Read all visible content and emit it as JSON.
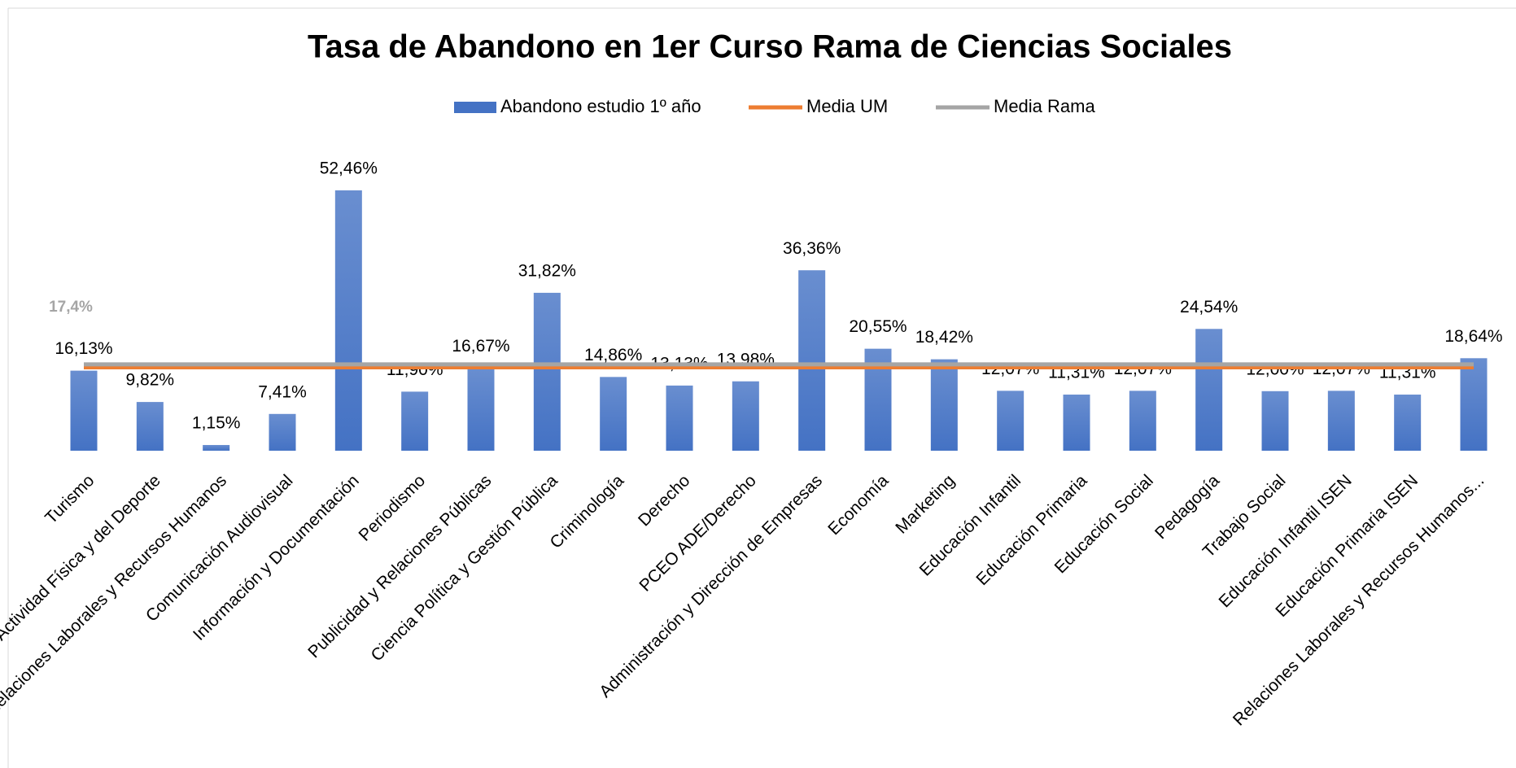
{
  "chart_data": {
    "type": "bar",
    "title": "Tasa de Abandono en 1er Curso Rama de Ciencias Sociales",
    "categories": [
      "Turismo",
      "Ciencias de la Actividad Física y del Deporte",
      "Relaciones Laborales y Recursos Humanos",
      "Comunicación Audiovisual",
      "Información y Documentación",
      "Periodismo",
      "Publicidad y Relaciones Públicas",
      "Ciencia Política y Gestión Pública",
      "Criminología",
      "Derecho",
      "PCEO ADE/Derecho",
      "Administración y Dirección de Empresas",
      "Economía",
      "Marketing",
      "Educación Infantil",
      "Educación Primaria",
      "Educación Social",
      "Pedagogía",
      "Trabajo Social",
      "Educación Infantil ISEN",
      "Educación Primaria ISEN",
      "Relaciones Laborales y Recursos Humanos..."
    ],
    "series": [
      {
        "name": "Abandono estudio 1º año",
        "color": "#4472c4",
        "values": [
          16.13,
          9.82,
          1.15,
          7.41,
          52.46,
          11.9,
          16.67,
          31.82,
          14.86,
          13.13,
          13.98,
          36.36,
          20.55,
          18.42,
          12.07,
          11.31,
          12.07,
          24.54,
          12.0,
          12.07,
          11.31,
          18.64
        ],
        "value_labels": [
          "16,13%",
          "9,82%",
          "1,15%",
          "7,41%",
          "52,46%",
          "11,90%",
          "16,67%",
          "31,82%",
          "14,86%",
          "13,13%",
          "13,98%",
          "36,36%",
          "20,55%",
          "18,42%",
          "12,07%",
          "11,31%",
          "12,07%",
          "24,54%",
          "12,00%",
          "12,07%",
          "11,31%",
          "18,64%"
        ]
      },
      {
        "name": "Media UM",
        "color": "#ed7d31",
        "type": "line",
        "values": [
          16.8,
          16.8,
          16.8,
          16.8,
          16.8,
          16.8,
          16.8,
          16.8,
          16.8,
          16.8,
          16.8,
          16.8,
          16.8,
          16.8,
          16.8,
          16.8,
          16.8,
          16.8,
          16.8,
          16.8,
          16.8,
          16.8
        ]
      },
      {
        "name": "Media Rama",
        "color": "#a5a5a5",
        "type": "line",
        "values": [
          17.4,
          17.4,
          17.4,
          17.4,
          17.4,
          17.4,
          17.4,
          17.4,
          17.4,
          17.4,
          17.4,
          17.4,
          17.4,
          17.4,
          17.4,
          17.4,
          17.4,
          17.4,
          17.4,
          17.4,
          17.4,
          17.4
        ],
        "value_labels": [
          "17,4%",
          null,
          null,
          null,
          null,
          null,
          null,
          null,
          null,
          null,
          null,
          null,
          null,
          null,
          null,
          null,
          null,
          null,
          null,
          null,
          null,
          null
        ]
      }
    ],
    "ylim": [
      0,
      60
    ],
    "legend": "top"
  }
}
